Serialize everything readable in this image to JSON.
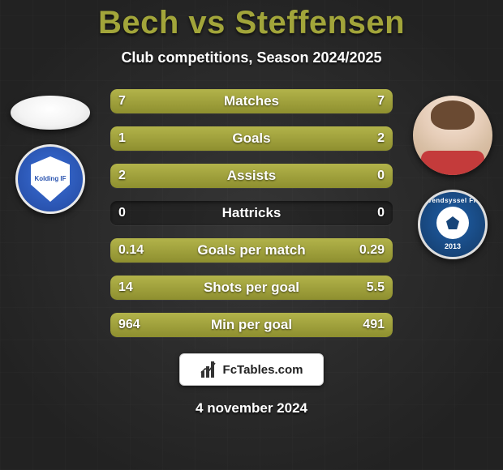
{
  "title": "Bech vs Steffensen",
  "subtitle": "Club competitions, Season 2024/2025",
  "date": "4 november 2024",
  "footer_brand": "FcTables.com",
  "bar_color": "#a2a53a",
  "background_color": "#2a2a2a",
  "title_color": "#a2a53a",
  "text_color": "#ffffff",
  "title_fontsize": 40,
  "subtitle_fontsize": 18,
  "row_label_fontsize": 17,
  "value_fontsize": 16,
  "players": {
    "left": {
      "name": "Bech",
      "club": "Kolding IF",
      "club_color": "#2a54b0"
    },
    "right": {
      "name": "Steffensen",
      "club": "Vendsyssel FF",
      "club_year": "2013",
      "club_color": "#17457a"
    }
  },
  "rows": [
    {
      "label": "Matches",
      "left": "7",
      "right": "7",
      "left_pct": 50,
      "right_pct": 50
    },
    {
      "label": "Goals",
      "left": "1",
      "right": "2",
      "left_pct": 33.3,
      "right_pct": 66.7
    },
    {
      "label": "Assists",
      "left": "2",
      "right": "0",
      "left_pct": 100,
      "right_pct": 0
    },
    {
      "label": "Hattricks",
      "left": "0",
      "right": "0",
      "left_pct": 0,
      "right_pct": 0
    },
    {
      "label": "Goals per match",
      "left": "0.14",
      "right": "0.29",
      "left_pct": 32.6,
      "right_pct": 67.4
    },
    {
      "label": "Shots per goal",
      "left": "14",
      "right": "5.5",
      "left_pct": 71.8,
      "right_pct": 28.2
    },
    {
      "label": "Min per goal",
      "left": "964",
      "right": "491",
      "left_pct": 66.3,
      "right_pct": 33.7
    }
  ]
}
